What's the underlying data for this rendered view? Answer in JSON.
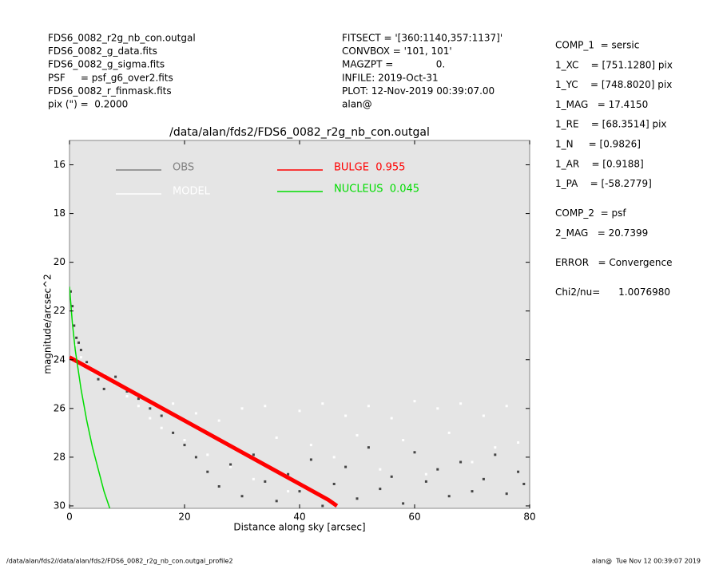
{
  "header": {
    "left": [
      "FDS6_0082_r2g_nb_con.outgal",
      "FDS6_0082_g_data.fits",
      "FDS6_0082_g_sigma.fits",
      "PSF     = psf_g6_over2.fits",
      "FDS6_0082_r_finmask.fits",
      "pix (\") =  0.2000"
    ],
    "center": [
      "FITSECT = '[360:1140,357:1137]'",
      "CONVBOX = '101, 101'",
      "MAGZPT =              0.",
      "INFILE: 2019-Oct-31",
      "PLOT: 12-Nov-2019 00:39:07.00",
      "alan@"
    ],
    "right": [
      [
        "COMP_1  = sersic",
        "1_XC    = [751.1280] pix",
        "1_YC    = [748.8020] pix",
        "1_MAG   = 17.4150",
        "1_RE    = [68.3514] pix",
        "1_N     = [0.9826]",
        "1_AR    = [0.9188]",
        "1_PA    = [-58.2779]"
      ],
      [
        "COMP_2  = psf",
        "2_MAG   = 20.7399"
      ],
      [
        "ERROR   = Convergence"
      ],
      [
        "Chi2/nu=      1.0076980"
      ]
    ]
  },
  "footer": {
    "left": "/data/alan/fds2//data/alan/fds2/FDS6_0082_r2g_nb_con.outgal_profile2",
    "right": "alan@  Tue Nov 12 00:39:07 2019"
  },
  "chart_data": {
    "type": "scatter",
    "title": "/data/alan/fds2/FDS6_0082_r2g_nb_con.outgal",
    "x_label": "Distance along sky [arcsec]",
    "y_label": "magnitude/arcsec^2",
    "xlim": [
      0,
      80
    ],
    "xticks": [
      0,
      20,
      40,
      60,
      80
    ],
    "ylim": [
      30.1,
      15
    ],
    "yticks": [
      16,
      18,
      20,
      22,
      24,
      26,
      28,
      30
    ],
    "background": "#e5e5e5",
    "series": [
      {
        "name": "OBS",
        "color": "#808080",
        "mode": "markers",
        "x": [
          0.2,
          0.5,
          0.8,
          1.2,
          1.6,
          2,
          3,
          4,
          5,
          6,
          8,
          10,
          12,
          14,
          16,
          18,
          20,
          22,
          24,
          26,
          28,
          30,
          32,
          34,
          36,
          38,
          40,
          42,
          44,
          46,
          48,
          50,
          52,
          54,
          56,
          58,
          60,
          62,
          64,
          66,
          68,
          70,
          72,
          74,
          76,
          78,
          79
        ],
        "values": [
          21.2,
          21.8,
          22.6,
          23.1,
          23.3,
          23.6,
          24.1,
          24.4,
          24.8,
          25.2,
          24.7,
          25.3,
          25.6,
          26.0,
          26.3,
          27.0,
          27.5,
          28.0,
          28.6,
          29.2,
          28.3,
          29.6,
          27.9,
          29.0,
          29.8,
          28.7,
          29.4,
          28.1,
          30.0,
          29.1,
          28.4,
          29.7,
          27.6,
          29.3,
          28.8,
          29.9,
          27.8,
          29.0,
          28.5,
          29.6,
          28.2,
          29.4,
          28.9,
          27.9,
          29.5,
          28.6,
          29.1
        ]
      },
      {
        "name": "MODEL",
        "color": "#ffffff",
        "mode": "markers",
        "x": [
          1,
          2,
          3,
          4,
          6,
          8,
          10,
          12,
          14,
          16,
          18,
          20,
          22,
          24,
          26,
          28,
          30,
          32,
          34,
          36,
          38,
          40,
          42,
          44,
          46,
          48,
          50,
          52,
          54,
          56,
          58,
          60,
          62,
          64,
          66,
          68,
          70,
          72,
          74,
          76,
          78
        ],
        "values": [
          23.4,
          23.9,
          24.2,
          24.5,
          24.6,
          25.0,
          25.5,
          25.9,
          26.4,
          26.8,
          25.8,
          27.3,
          26.2,
          27.9,
          26.5,
          28.4,
          26.0,
          28.9,
          25.9,
          27.2,
          29.4,
          26.1,
          27.5,
          25.8,
          28.0,
          26.3,
          27.1,
          25.9,
          28.5,
          26.4,
          27.3,
          25.7,
          28.7,
          26.0,
          27.0,
          25.8,
          28.2,
          26.3,
          27.6,
          25.9,
          27.4
        ]
      },
      {
        "name": "BULGE  0.955",
        "color": "#ff0000",
        "mode": "line",
        "x": [
          0,
          5,
          10,
          15,
          20,
          25,
          30,
          35,
          40,
          45,
          46.5
        ],
        "values": [
          23.9,
          24.55,
          25.2,
          25.85,
          26.5,
          27.15,
          27.8,
          28.45,
          29.1,
          29.75,
          30.0
        ]
      },
      {
        "name": "NUCLEUS  0.045",
        "color": "#00dd00",
        "mode": "line",
        "x": [
          0,
          0.5,
          1,
          2,
          3,
          4,
          5,
          6,
          7
        ],
        "values": [
          21.0,
          22.5,
          23.6,
          25.2,
          26.5,
          27.6,
          28.5,
          29.4,
          30.1
        ]
      }
    ]
  }
}
